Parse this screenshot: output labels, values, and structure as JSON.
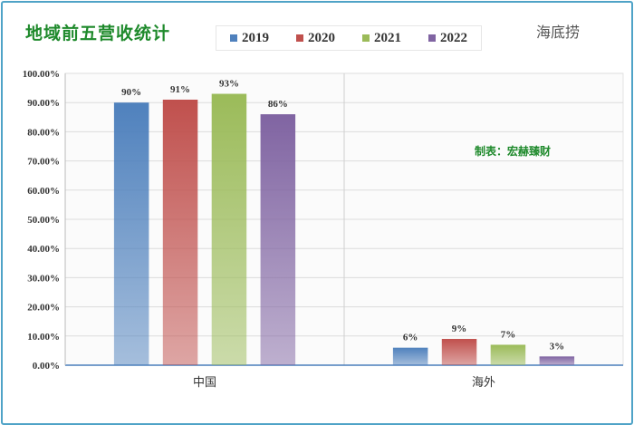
{
  "title": "地域前五营收统计",
  "company": "海底捞",
  "maker": "制表：宏赫臻财",
  "chart_data": {
    "type": "bar",
    "categories": [
      "中国",
      "海外"
    ],
    "series": [
      {
        "name": "2019",
        "color": "#4f81bd",
        "values": [
          90,
          6
        ],
        "labels": [
          "90%",
          "6%"
        ]
      },
      {
        "name": "2020",
        "color": "#c0504d",
        "values": [
          91,
          9
        ],
        "labels": [
          "91%",
          "9%"
        ]
      },
      {
        "name": "2021",
        "color": "#9bbb59",
        "values": [
          93,
          7
        ],
        "labels": [
          "93%",
          "7%"
        ]
      },
      {
        "name": "2022",
        "color": "#8064a2",
        "values": [
          86,
          3
        ],
        "labels": [
          "86%",
          "3%"
        ]
      }
    ],
    "ylim": [
      0,
      100
    ],
    "yticks": [
      "0.00%",
      "10.00%",
      "20.00%",
      "30.00%",
      "40.00%",
      "50.00%",
      "60.00%",
      "70.00%",
      "80.00%",
      "90.00%",
      "100.00%"
    ],
    "legend_position": "top",
    "grid": true
  }
}
